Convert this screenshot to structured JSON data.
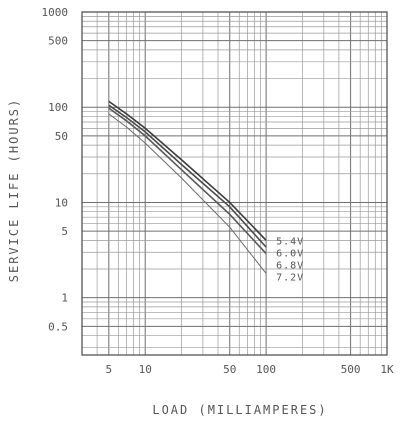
{
  "chart_data": {
    "type": "line",
    "xlabel": "LOAD (MILLIAMPERES)",
    "ylabel": "SERVICE LIFE (HOURS)",
    "x_scale": "log",
    "y_scale": "log",
    "xlim": [
      3,
      1000
    ],
    "ylim": [
      0.25,
      1000
    ],
    "grid": true,
    "x_ticks": [
      {
        "value": 5,
        "label": "5"
      },
      {
        "value": 10,
        "label": "10"
      },
      {
        "value": 50,
        "label": "50"
      },
      {
        "value": 100,
        "label": "100"
      },
      {
        "value": 500,
        "label": "500"
      },
      {
        "value": 1000,
        "label": "1K"
      }
    ],
    "y_ticks": [
      {
        "value": 1000,
        "label": "1000"
      },
      {
        "value": 500,
        "label": "500"
      },
      {
        "value": 100,
        "label": "100"
      },
      {
        "value": 50,
        "label": "50"
      },
      {
        "value": 10,
        "label": "10"
      },
      {
        "value": 5,
        "label": "5"
      },
      {
        "value": 1,
        "label": "1"
      },
      {
        "value": 0.5,
        "label": "0.5"
      }
    ],
    "series": [
      {
        "name": "5.4V",
        "x": [
          5,
          7,
          10,
          20,
          50,
          100
        ],
        "y": [
          115,
          85,
          60,
          28,
          10,
          4.0
        ]
      },
      {
        "name": "6.0V",
        "x": [
          5,
          7,
          10,
          20,
          50,
          100
        ],
        "y": [
          105,
          78,
          55,
          25,
          9,
          3.4
        ]
      },
      {
        "name": "6.8V",
        "x": [
          5,
          7,
          10,
          20,
          50,
          100
        ],
        "y": [
          98,
          72,
          50,
          22,
          7.5,
          2.9
        ]
      },
      {
        "name": "7.2V",
        "x": [
          5,
          7,
          10,
          20,
          50,
          100
        ],
        "y": [
          85,
          62,
          42,
          18,
          5.5,
          1.8
        ]
      }
    ]
  }
}
